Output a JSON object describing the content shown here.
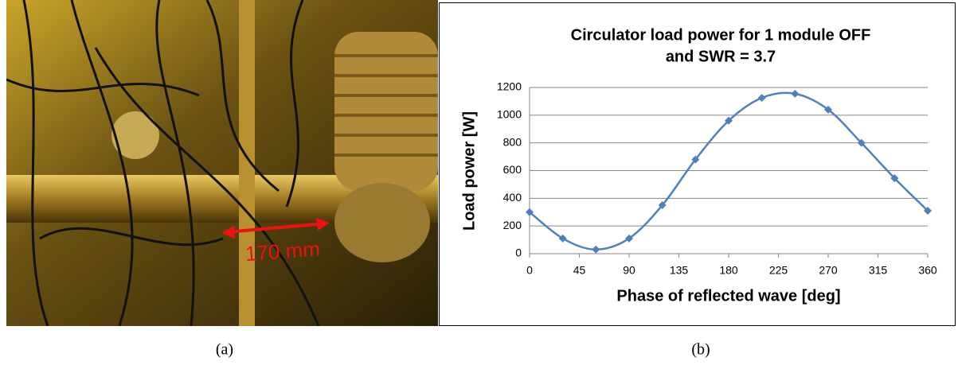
{
  "photo": {
    "annotation": "170 mm",
    "caption": "(a)"
  },
  "chart_caption": "(b)",
  "chart_data": {
    "type": "line",
    "title": [
      "Circulator load power for 1 module OFF",
      "and SWR = 3.7"
    ],
    "x_label": "Phase of reflected wave [deg]",
    "y_label": "Load power [W]",
    "x": [
      0,
      30,
      60,
      90,
      120,
      150,
      180,
      210,
      240,
      270,
      300,
      330,
      360
    ],
    "values": [
      300,
      110,
      30,
      110,
      350,
      680,
      960,
      1125,
      1155,
      1040,
      800,
      545,
      310
    ],
    "color": "#4f81bd",
    "xlim": [
      0,
      360
    ],
    "xticks": [
      0,
      45,
      90,
      135,
      180,
      225,
      270,
      315,
      360
    ],
    "ylim": [
      0,
      1200
    ],
    "yticks": [
      0,
      200,
      400,
      600,
      800,
      1000,
      1200
    ],
    "grid": true
  }
}
